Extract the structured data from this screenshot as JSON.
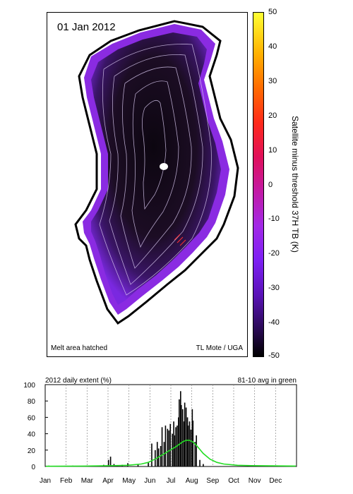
{
  "map": {
    "date": "01 Jan 2012",
    "footer_left": "Melt area hatched",
    "footer_right": "TL Mote / UGA",
    "colorbar": {
      "label": "Satellite minus threshold 37H TB (K)",
      "ticks": [
        "50",
        "40",
        "30",
        "20",
        "10",
        "0",
        "-10",
        "-20",
        "-30",
        "-40",
        "-50"
      ],
      "range": [
        -50,
        50
      ],
      "colors": [
        "#000000",
        "#5a12b8",
        "#a229e6",
        "#e0105a",
        "#ff6a00",
        "#ffff33"
      ]
    },
    "ice_color": "#1c0d24",
    "edge_color": "#8a2be2"
  },
  "chart_data": {
    "type": "bar",
    "title": "2012 daily extent (%)",
    "annotation": "81-10 avg in green",
    "categories": [
      "Jan",
      "Feb",
      "Mar",
      "Apr",
      "May",
      "Jun",
      "Jul",
      "Aug",
      "Sep",
      "Oct",
      "Nov",
      "Dec"
    ],
    "ylim": [
      0,
      100
    ],
    "yticks": [
      "0",
      "20",
      "40",
      "60",
      "80",
      "100"
    ],
    "grid": "vertical-dashed",
    "series": [
      {
        "kind": "bar",
        "color": "#000000",
        "x": [
          5,
          40,
          60,
          85,
          92,
          95,
          100,
          112,
          120,
          135,
          150,
          155,
          160,
          163,
          165,
          168,
          170,
          173,
          175,
          178,
          180,
          182,
          185,
          187,
          188,
          190,
          192,
          194,
          195,
          197,
          198,
          200,
          202,
          203,
          205,
          207,
          208,
          210,
          212,
          214,
          215,
          218,
          220,
          225,
          230
        ],
        "values": [
          1,
          1,
          1,
          2,
          8,
          12,
          3,
          2,
          4,
          3,
          5,
          28,
          20,
          30,
          22,
          25,
          48,
          30,
          50,
          46,
          44,
          52,
          40,
          55,
          38,
          48,
          50,
          60,
          82,
          92,
          75,
          70,
          55,
          78,
          72,
          60,
          50,
          55,
          45,
          70,
          56,
          30,
          38,
          8,
          3
        ]
      },
      {
        "name": "81-10 avg",
        "kind": "line",
        "color": "#22dd22",
        "x": [
          1,
          60,
          100,
          120,
          140,
          150,
          160,
          170,
          180,
          190,
          195,
          200,
          205,
          210,
          215,
          220,
          225,
          230,
          240,
          250,
          260,
          280,
          300,
          330,
          365
        ],
        "values": [
          0.3,
          0.5,
          1,
          1.5,
          3,
          5,
          9,
          14,
          19,
          24,
          27,
          30,
          32,
          32,
          30,
          26,
          21,
          16,
          9,
          5,
          3,
          1.5,
          1,
          0.8,
          0.5
        ]
      }
    ]
  }
}
